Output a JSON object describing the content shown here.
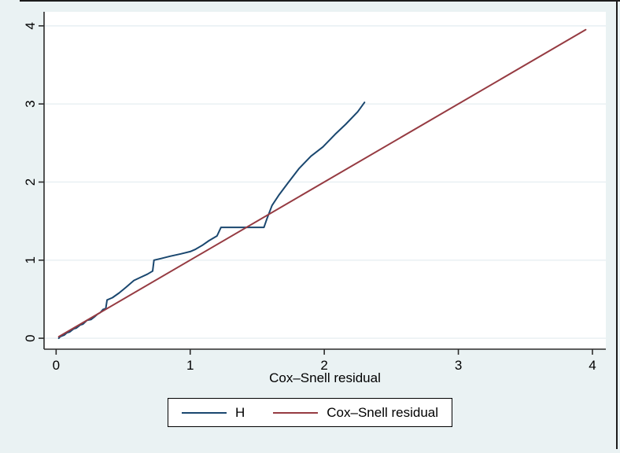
{
  "window": {
    "background_color": "#eaf2f3",
    "border_color": "#1c1c1c"
  },
  "chart_data": {
    "type": "line",
    "title": "",
    "xlabel": "Cox–Snell residual",
    "ylabel": "",
    "xlim": [
      -0.09,
      4.1
    ],
    "ylim": [
      -0.14,
      4.18
    ],
    "x_ticks": [
      0,
      1,
      2,
      3,
      4
    ],
    "y_ticks": [
      0,
      1,
      2,
      3,
      4
    ],
    "grid": {
      "horizontal": true,
      "vertical": false,
      "color": "#e7eff2"
    },
    "plot_background": "#ffffff",
    "axis_color": "#2b2b2b",
    "series": [
      {
        "name": "H",
        "color": "#1a476f",
        "points": [
          [
            0.02,
            0.0
          ],
          [
            0.03,
            0.02
          ],
          [
            0.06,
            0.04
          ],
          [
            0.08,
            0.07
          ],
          [
            0.1,
            0.08
          ],
          [
            0.13,
            0.12
          ],
          [
            0.15,
            0.13
          ],
          [
            0.18,
            0.17
          ],
          [
            0.2,
            0.18
          ],
          [
            0.23,
            0.23
          ],
          [
            0.26,
            0.24
          ],
          [
            0.29,
            0.28
          ],
          [
            0.31,
            0.31
          ],
          [
            0.33,
            0.33
          ],
          [
            0.35,
            0.37
          ],
          [
            0.37,
            0.38
          ],
          [
            0.38,
            0.49
          ],
          [
            0.42,
            0.52
          ],
          [
            0.47,
            0.58
          ],
          [
            0.52,
            0.65
          ],
          [
            0.58,
            0.74
          ],
          [
            0.63,
            0.78
          ],
          [
            0.68,
            0.82
          ],
          [
            0.71,
            0.85
          ],
          [
            0.72,
            0.86
          ],
          [
            0.73,
            1.0
          ],
          [
            0.78,
            1.02
          ],
          [
            0.85,
            1.05
          ],
          [
            0.93,
            1.08
          ],
          [
            1.0,
            1.11
          ],
          [
            1.04,
            1.14
          ],
          [
            1.09,
            1.19
          ],
          [
            1.14,
            1.25
          ],
          [
            1.18,
            1.29
          ],
          [
            1.2,
            1.31
          ],
          [
            1.23,
            1.42
          ],
          [
            1.4,
            1.42
          ],
          [
            1.55,
            1.42
          ],
          [
            1.57,
            1.52
          ],
          [
            1.61,
            1.7
          ],
          [
            1.66,
            1.83
          ],
          [
            1.73,
            1.99
          ],
          [
            1.81,
            2.17
          ],
          [
            1.9,
            2.33
          ],
          [
            1.99,
            2.45
          ],
          [
            2.08,
            2.61
          ],
          [
            2.16,
            2.74
          ],
          [
            2.25,
            2.9
          ],
          [
            2.3,
            3.02
          ]
        ]
      },
      {
        "name": "Cox–Snell residual",
        "color": "#963b42",
        "points": [
          [
            0.02,
            0.02
          ],
          [
            3.95,
            3.95
          ]
        ]
      }
    ]
  },
  "legend": {
    "entries": [
      {
        "label": "H",
        "color": "#1a476f"
      },
      {
        "label": "Cox–Snell residual",
        "color": "#963b42"
      }
    ]
  }
}
